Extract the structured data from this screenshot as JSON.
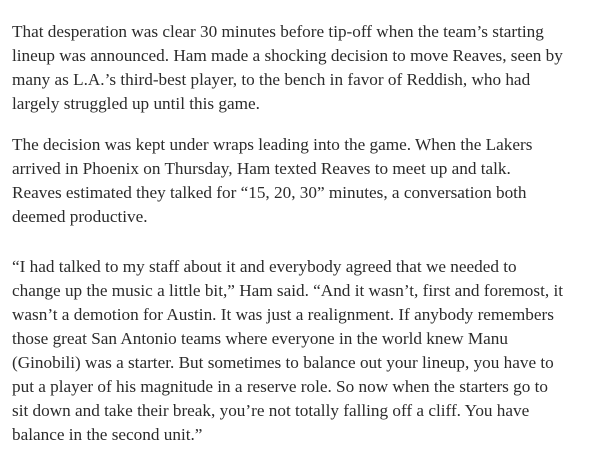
{
  "article": {
    "paragraphs": [
      {
        "lines": [
          "That desperation was clear 30 minutes before tip-off when the team’s starting",
          "lineup was announced. Ham made a shocking decision to move Reaves, seen by",
          "many as L.A.’s third-best player, to the bench in favor of Reddish, who had",
          "largely struggled up until this game."
        ]
      },
      {
        "lines": [
          "The decision was kept under wraps leading into the game. When the Lakers",
          "arrived in Phoenix on Thursday, Ham texted Reaves to meet up and talk.",
          "Reaves estimated they talked for “15, 20, 30” minutes, a conversation both",
          "deemed productive."
        ]
      },
      {
        "lines": [
          "“I had talked to my staff about it and everybody agreed that we needed to",
          "change up the music a little bit,” Ham said. “And it wasn’t, first and foremost, it",
          "wasn’t a demotion for Austin. It was just a realignment. If anybody remembers",
          "those great San Antonio teams where everyone in the world knew Manu",
          "(Ginobili) was a starter. But sometimes to balance out your lineup, you have to",
          "put a player of his magnitude in a reserve role. So now when the starters go to",
          "sit down and take their break, you’re not totally falling off a cliff. You have",
          "balance in the second unit.”"
        ]
      }
    ]
  }
}
